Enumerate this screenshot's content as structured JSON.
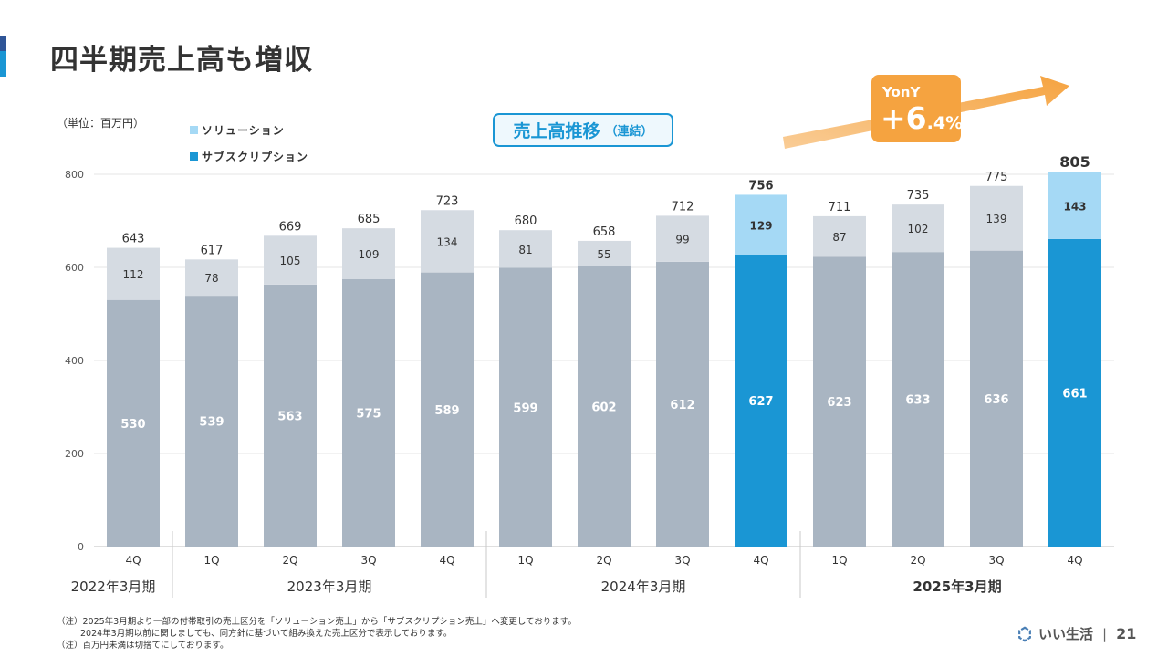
{
  "page": {
    "title": "四半期売上高も増収",
    "unit_label": "（単位：百万円）",
    "chart_title": "売上高推移",
    "chart_title_sub": "（連結）",
    "yony_label": "YonY",
    "yony_value_main": "+6",
    "yony_value_small": ".4%",
    "footnotes": [
      "（注）2025年3月期より一部の付帯取引の売上区分を「ソリューション売上」から「サブスクリプション売上」へ変更しております。",
      "2024年3月期以前に関しましても、同方針に基づいて組み換えた売上区分で表示しております。",
      "（注）百万円未満は切捨てにしております。"
    ],
    "brand_name": "いい生活",
    "page_number": "21"
  },
  "colors": {
    "accent_blue": "#1a96d4",
    "light_blue": "#a5d9f5",
    "gray_dark": "#a9b5c2",
    "gray_light": "#d5dbe2",
    "orange": "#f5a340",
    "brand_navy": "#2f5597"
  },
  "chart_data": {
    "type": "bar",
    "stacked": true,
    "title": "売上高推移（連結）",
    "ylim": [
      0,
      800
    ],
    "yticks": [
      0,
      200,
      400,
      600,
      800
    ],
    "grid": true,
    "legend_position": "top-left",
    "categories": [
      "4Q",
      "1Q",
      "2Q",
      "3Q",
      "4Q",
      "1Q",
      "2Q",
      "3Q",
      "4Q",
      "1Q",
      "2Q",
      "3Q",
      "4Q"
    ],
    "fiscal_groups": [
      {
        "label": "2022年3月期",
        "start": 0,
        "end": 0,
        "bold": false
      },
      {
        "label": "2023年3月期",
        "start": 1,
        "end": 4,
        "bold": false
      },
      {
        "label": "2024年3月期",
        "start": 5,
        "end": 8,
        "bold": false
      },
      {
        "label": "2025年3月期",
        "start": 9,
        "end": 12,
        "bold": true
      }
    ],
    "series": [
      {
        "name": "サブスクリプション",
        "values": [
          530,
          539,
          563,
          575,
          589,
          599,
          602,
          612,
          627,
          623,
          633,
          636,
          661
        ]
      },
      {
        "name": "ソリューション",
        "values": [
          112,
          78,
          105,
          109,
          134,
          81,
          55,
          99,
          129,
          87,
          102,
          139,
          143
        ]
      }
    ],
    "totals": [
      643,
      617,
      669,
      685,
      723,
      680,
      658,
      712,
      756,
      711,
      735,
      775,
      805
    ],
    "highlighted": [
      false,
      false,
      false,
      false,
      false,
      false,
      false,
      false,
      true,
      false,
      false,
      false,
      true
    ]
  }
}
